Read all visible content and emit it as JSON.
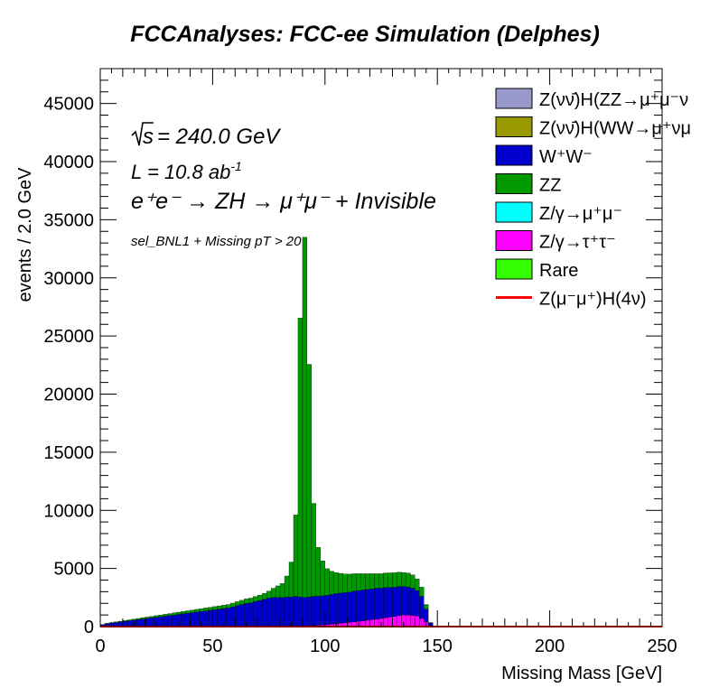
{
  "chart_data": {
    "type": "bar",
    "title": "FCCAnalyses: FCC-ee Simulation (Delphes)",
    "xlabel": "Missing Mass [GeV]",
    "ylabel": "events / 2.0 GeV",
    "xlim": [
      0,
      250
    ],
    "ylim": [
      0,
      48000
    ],
    "xticks": [
      "0",
      "50",
      "100",
      "150",
      "200",
      "250"
    ],
    "yticks": [
      "0",
      "5000",
      "10000",
      "15000",
      "20000",
      "25000",
      "30000",
      "35000",
      "40000",
      "45000"
    ],
    "annotations": {
      "sqrt_s": "= 240.0 GeV",
      "lumi": "L = 10.8 ab",
      "lumi_exp": "-1",
      "process": "e⁺e⁻ → ZH → μ⁺μ⁻ + Invisible",
      "selection": "sel_BNL1 + Missing pT > 20"
    },
    "stack_order": [
      "Rare",
      "Z/γ→τ⁺τ⁻",
      "Z/γ→μ⁺μ⁻",
      "Z(νν̄)H(WW→μ⁺νμ⁻ν̄)",
      "Z(νν̄)H(ZZ→μ⁺μ⁻νν̄)",
      "W⁺W⁻",
      "ZZ"
    ],
    "legend": [
      {
        "label": "Z(νν̄)H(ZZ→μ⁺μ⁻ν",
        "color": "#9999cc",
        "kind": "box"
      },
      {
        "label": "Z(νν̄)H(WW→μ⁺νμ",
        "color": "#999900",
        "kind": "box"
      },
      {
        "label": "W⁺W⁻",
        "color": "#0000cc",
        "kind": "box"
      },
      {
        "label": "ZZ",
        "color": "#009900",
        "kind": "box"
      },
      {
        "label": "Z/γ→μ⁺μ⁻",
        "color": "#00ffff",
        "kind": "box"
      },
      {
        "label": "Z/γ→τ⁺τ⁻",
        "color": "#ff00ff",
        "kind": "box"
      },
      {
        "label": "Rare",
        "color": "#33ff00",
        "kind": "box"
      },
      {
        "label": "Z(μ⁻μ⁺)H(4ν)",
        "color": "#ff0000",
        "kind": "line"
      }
    ],
    "bin_width": 2.0,
    "x": [
      1,
      3,
      5,
      7,
      9,
      11,
      13,
      15,
      17,
      19,
      21,
      23,
      25,
      27,
      29,
      31,
      33,
      35,
      37,
      39,
      41,
      43,
      45,
      47,
      49,
      51,
      53,
      55,
      57,
      59,
      61,
      63,
      65,
      67,
      69,
      71,
      73,
      75,
      77,
      79,
      81,
      83,
      85,
      87,
      89,
      91,
      93,
      95,
      97,
      99,
      101,
      103,
      105,
      107,
      109,
      111,
      113,
      115,
      117,
      119,
      121,
      123,
      125,
      127,
      129,
      131,
      133,
      135,
      137,
      139,
      141,
      143,
      145,
      147,
      149
    ],
    "series": [
      {
        "name": "Rare",
        "color": "#33ff00",
        "values": [
          0,
          0,
          0,
          0,
          0,
          0,
          0,
          0,
          0,
          0,
          0,
          0,
          0,
          0,
          0,
          0,
          0,
          0,
          0,
          0,
          0,
          0,
          0,
          0,
          0,
          0,
          0,
          0,
          0,
          0,
          0,
          0,
          0,
          0,
          0,
          0,
          0,
          0,
          0,
          0,
          0,
          0,
          0,
          0,
          0,
          0,
          0,
          0,
          0,
          0,
          0,
          0,
          0,
          0,
          0,
          0,
          0,
          0,
          0,
          0,
          0,
          0,
          0,
          0,
          0,
          0,
          0,
          0,
          0,
          0,
          0,
          0,
          0,
          0,
          0
        ]
      },
      {
        "name": "Z/γ→τ⁺τ⁻",
        "color": "#ff00ff",
        "values": [
          0,
          0,
          0,
          0,
          0,
          0,
          0,
          0,
          0,
          0,
          0,
          0,
          0,
          0,
          0,
          0,
          0,
          0,
          0,
          0,
          0,
          0,
          0,
          0,
          0,
          0,
          0,
          0,
          0,
          0,
          0,
          0,
          0,
          0,
          0,
          0,
          0,
          0,
          0,
          0,
          0,
          0,
          0,
          0,
          0,
          0,
          60,
          100,
          120,
          150,
          180,
          210,
          240,
          280,
          320,
          360,
          400,
          450,
          500,
          550,
          600,
          650,
          700,
          760,
          820,
          880,
          940,
          1000,
          1000,
          950,
          900,
          700,
          400,
          100,
          0
        ]
      },
      {
        "name": "Z/γ→μ⁺μ⁻",
        "color": "#00ffff",
        "values": [
          0,
          0,
          0,
          0,
          0,
          0,
          0,
          0,
          0,
          0,
          0,
          0,
          0,
          0,
          0,
          0,
          0,
          0,
          0,
          0,
          0,
          0,
          0,
          0,
          0,
          0,
          0,
          0,
          0,
          0,
          0,
          0,
          0,
          0,
          0,
          0,
          0,
          0,
          0,
          0,
          0,
          0,
          0,
          0,
          0,
          0,
          0,
          0,
          0,
          0,
          0,
          0,
          0,
          0,
          0,
          0,
          0,
          0,
          0,
          0,
          0,
          0,
          0,
          0,
          0,
          0,
          0,
          0,
          0,
          0,
          0,
          0,
          0,
          0,
          0
        ]
      },
      {
        "name": "Z(νν̄)H(WW→μ⁺νμ⁻ν̄)",
        "color": "#999900",
        "values": [
          0,
          0,
          0,
          0,
          0,
          0,
          0,
          0,
          0,
          0,
          0,
          0,
          0,
          0,
          0,
          0,
          0,
          0,
          0,
          0,
          0,
          0,
          0,
          0,
          0,
          0,
          0,
          0,
          0,
          0,
          0,
          0,
          0,
          0,
          0,
          0,
          0,
          0,
          0,
          0,
          0,
          0,
          0,
          0,
          0,
          0,
          0,
          0,
          0,
          0,
          0,
          0,
          0,
          0,
          0,
          0,
          0,
          0,
          0,
          0,
          0,
          0,
          0,
          0,
          0,
          0,
          0,
          0,
          0,
          0,
          0,
          0,
          0,
          0,
          0
        ]
      },
      {
        "name": "Z(νν̄)H(ZZ→μ⁺μ⁻νν̄)",
        "color": "#9999cc",
        "values": [
          0,
          0,
          0,
          0,
          0,
          0,
          0,
          0,
          0,
          0,
          0,
          0,
          0,
          0,
          0,
          0,
          0,
          0,
          0,
          0,
          0,
          0,
          0,
          0,
          0,
          0,
          0,
          0,
          0,
          0,
          0,
          0,
          0,
          0,
          0,
          0,
          0,
          0,
          0,
          0,
          0,
          0,
          0,
          0,
          0,
          0,
          0,
          0,
          0,
          0,
          0,
          0,
          0,
          0,
          0,
          0,
          0,
          0,
          0,
          0,
          0,
          0,
          0,
          0,
          0,
          0,
          0,
          0,
          0,
          0,
          0,
          0,
          0,
          0,
          0
        ]
      },
      {
        "name": "W⁺W⁻",
        "color": "#0000cc",
        "values": [
          150,
          250,
          300,
          350,
          400,
          450,
          500,
          550,
          600,
          650,
          700,
          750,
          800,
          850,
          900,
          950,
          1000,
          1050,
          1100,
          1150,
          1200,
          1250,
          1300,
          1350,
          1400,
          1450,
          1500,
          1550,
          1600,
          1700,
          1800,
          1900,
          2000,
          2050,
          2150,
          2250,
          2350,
          2450,
          2500,
          2500,
          2500,
          2550,
          2550,
          2600,
          2550,
          2500,
          2500,
          2500,
          2500,
          2500,
          2500,
          2550,
          2600,
          2600,
          2600,
          2600,
          2650,
          2650,
          2650,
          2650,
          2650,
          2650,
          2600,
          2600,
          2550,
          2500,
          2500,
          2450,
          2400,
          2350,
          2200,
          1900,
          1100,
          200,
          0
        ]
      },
      {
        "name": "ZZ",
        "color": "#009900",
        "values": [
          20,
          30,
          40,
          50,
          60,
          70,
          80,
          90,
          100,
          110,
          120,
          130,
          140,
          150,
          160,
          170,
          180,
          190,
          200,
          210,
          220,
          230,
          240,
          250,
          260,
          270,
          280,
          290,
          300,
          320,
          340,
          360,
          380,
          400,
          430,
          460,
          500,
          600,
          800,
          1000,
          1200,
          1800,
          3000,
          7000,
          24000,
          31000,
          20000,
          8000,
          4200,
          3000,
          2300,
          2000,
          1800,
          1700,
          1600,
          1550,
          1500,
          1450,
          1400,
          1350,
          1300,
          1250,
          1250,
          1250,
          1250,
          1250,
          1250,
          1200,
          1200,
          1150,
          1000,
          800,
          400,
          50,
          0
        ]
      }
    ],
    "signal": {
      "name": "Z(μ⁻μ⁺)H(4ν)",
      "color": "#ff0000",
      "values": [
        0,
        0,
        0,
        0,
        0,
        0,
        0,
        0,
        0,
        0,
        0,
        0,
        0,
        0,
        0,
        0,
        0,
        0,
        0,
        0,
        0,
        0,
        0,
        0,
        0,
        0,
        0,
        0,
        0,
        0,
        0,
        0,
        0,
        0,
        0,
        0,
        0,
        0,
        0,
        0,
        0,
        0,
        0,
        0,
        0,
        0,
        0,
        0,
        0,
        0,
        0,
        0,
        0,
        0,
        0,
        0,
        0,
        0,
        0,
        0,
        0,
        0,
        0,
        0,
        0,
        0,
        0,
        0,
        0,
        0,
        0,
        0,
        0,
        0,
        0
      ]
    }
  }
}
